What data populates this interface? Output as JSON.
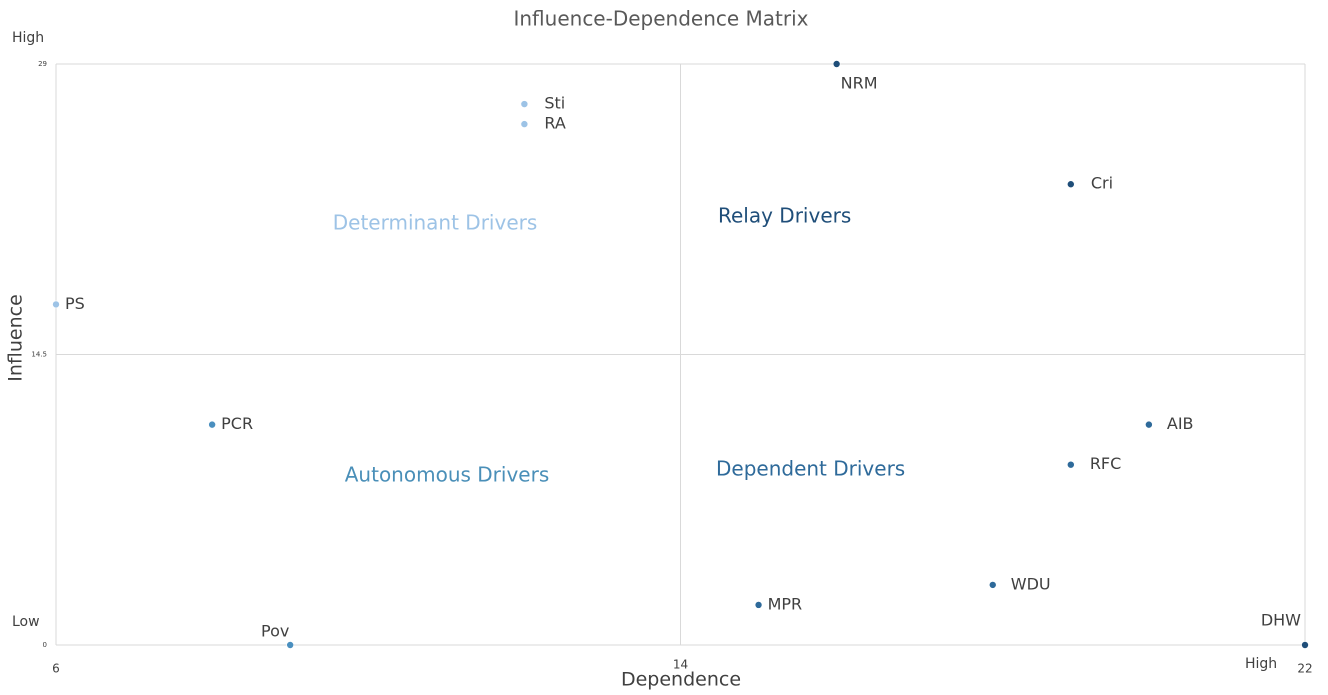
{
  "chart_data": {
    "type": "scatter",
    "title": "Influence-Dependence Matrix",
    "x_label": "Dependence",
    "y_label": "Influence",
    "labels": [
      "NRM",
      "Sti",
      "RA",
      "Cri",
      "PS",
      "PCR",
      "AIB",
      "RFC",
      "WDU",
      "MPR",
      "Pov",
      "DHW"
    ],
    "x": [
      16,
      12,
      12,
      19,
      6,
      8,
      20,
      19,
      18,
      15,
      9,
      22
    ],
    "y": [
      29,
      27,
      26,
      23,
      17,
      11,
      11,
      9,
      3,
      2,
      0,
      0
    ],
    "colors": [
      "#1f4e79",
      "#9dc3e6",
      "#9dc3e6",
      "#1f4e79",
      "#9dc3e6",
      "#4a8fbf",
      "#2e6a9a",
      "#2e6a9a",
      "#2e6a9a",
      "#2e6a9a",
      "#4a8fbf",
      "#1f4e79"
    ],
    "xlim": [
      6,
      22
    ],
    "ylim": [
      0,
      29
    ],
    "xticks": [
      6,
      14,
      22
    ],
    "yticks": [
      0,
      14.5,
      29
    ],
    "grid": true,
    "annotations": [
      {
        "text": "Determinant Drivers",
        "color": "#9dc3e6"
      },
      {
        "text": "Relay Drivers",
        "color": "#1f4e79"
      },
      {
        "text": "Autonomous Drivers",
        "color": "#4a8fb8"
      },
      {
        "text": "Dependent Drivers",
        "color": "#2e6a9a"
      },
      {
        "text": "High",
        "color": "#404040"
      },
      {
        "text": "Low",
        "color": "#404040"
      },
      {
        "text": "High",
        "color": "#404040"
      }
    ]
  }
}
